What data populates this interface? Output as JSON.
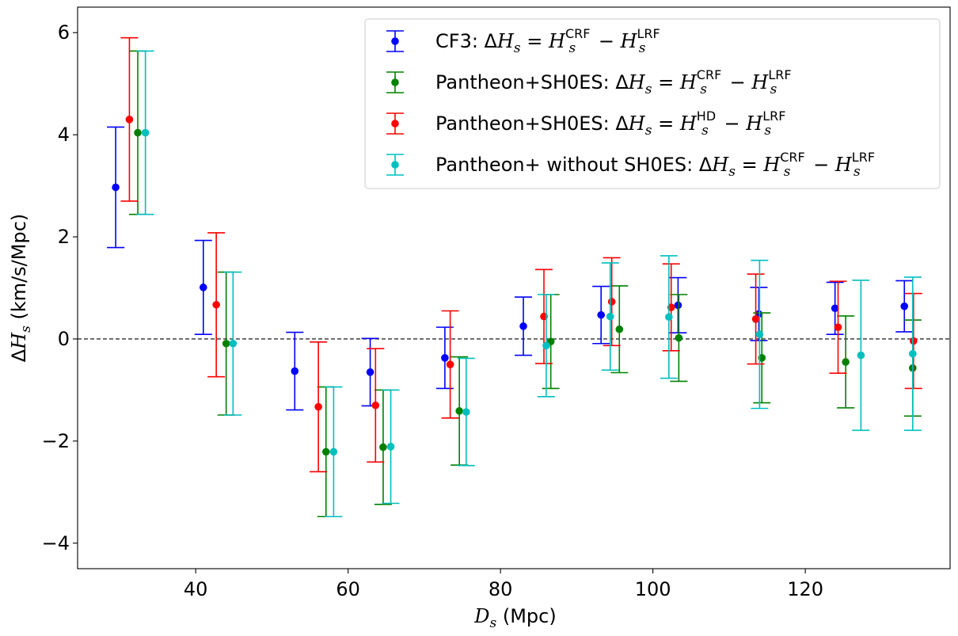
{
  "chart_data": {
    "type": "scatter",
    "title": "",
    "xlabel": {
      "var": "D",
      "sub": "s",
      "unit": " (Mpc)"
    },
    "ylabel": {
      "delta": "Δ",
      "var": "H",
      "sub": "s",
      "unit": " (km/s/Mpc)"
    },
    "xlim": [
      24.5,
      139
    ],
    "ylim": [
      -4.5,
      6.5
    ],
    "xticks": [
      40,
      60,
      80,
      100,
      120
    ],
    "yticks": [
      -4,
      -2,
      0,
      2,
      4,
      6
    ],
    "xtick_labels": [
      "40",
      "60",
      "80",
      "100",
      "120"
    ],
    "ytick_labels": [
      "−4",
      "−2",
      "0",
      "2",
      "4",
      "6"
    ],
    "reference_line": {
      "y": 0,
      "style": "dashed",
      "color": "#000000"
    },
    "legend_position": "top-right",
    "series": [
      {
        "name": "CF3",
        "sup_a": "CRF",
        "sup_b": "LRF",
        "color": "#0000ff",
        "x": [
          29.5,
          41.0,
          53.0,
          62.9,
          72.7,
          83.0,
          93.2,
          103.3,
          113.9,
          123.9,
          133.0
        ],
        "y": [
          2.97,
          1.01,
          -0.63,
          -0.65,
          -0.37,
          0.25,
          0.47,
          0.66,
          0.49,
          0.6,
          0.64
        ],
        "err": [
          1.18,
          0.92,
          0.76,
          0.66,
          0.6,
          0.57,
          0.56,
          0.54,
          0.52,
          0.51,
          0.5
        ]
      },
      {
        "name": "Pantheon+SH0ES",
        "sup_a": "CRF",
        "sup_b": "LRF",
        "color": "#008000",
        "x": [
          32.4,
          44.0,
          57.1,
          64.6,
          74.6,
          86.6,
          95.6,
          103.4,
          114.3,
          125.3,
          134.1
        ],
        "y": [
          4.04,
          -0.09,
          -2.21,
          -2.12,
          -1.41,
          -0.05,
          0.19,
          0.02,
          -0.37,
          -0.45,
          -0.57
        ],
        "err": [
          1.6,
          1.4,
          1.27,
          1.12,
          1.06,
          0.92,
          0.85,
          0.85,
          0.88,
          0.9,
          0.94
        ]
      },
      {
        "name": "Pantheon+SH0ES",
        "sup_a": "HD",
        "sup_b": "LRF",
        "color": "#ff0000",
        "x": [
          31.3,
          42.7,
          56.1,
          63.6,
          73.4,
          85.7,
          94.6,
          102.4,
          113.5,
          124.3,
          134.2
        ],
        "y": [
          4.3,
          0.67,
          -1.33,
          -1.3,
          -0.5,
          0.44,
          0.73,
          0.62,
          0.39,
          0.23,
          -0.04
        ],
        "err": [
          1.6,
          1.41,
          1.27,
          1.11,
          1.05,
          0.92,
          0.86,
          0.85,
          0.88,
          0.9,
          0.93
        ]
      },
      {
        "name": "Pantheon+ without SH0ES",
        "sup_a": "CRF",
        "sup_b": "LRF",
        "color": "#00bfbf",
        "x": [
          33.4,
          44.9,
          58.1,
          65.6,
          75.5,
          86.0,
          94.4,
          102.1,
          114.0,
          127.3,
          134.1
        ],
        "y": [
          4.04,
          -0.09,
          -2.21,
          -2.11,
          -1.43,
          -0.13,
          0.44,
          0.43,
          0.09,
          -0.32,
          -0.29
        ],
        "err": [
          1.6,
          1.4,
          1.27,
          1.11,
          1.05,
          1.0,
          1.05,
          1.2,
          1.45,
          1.47,
          1.5
        ]
      }
    ]
  }
}
